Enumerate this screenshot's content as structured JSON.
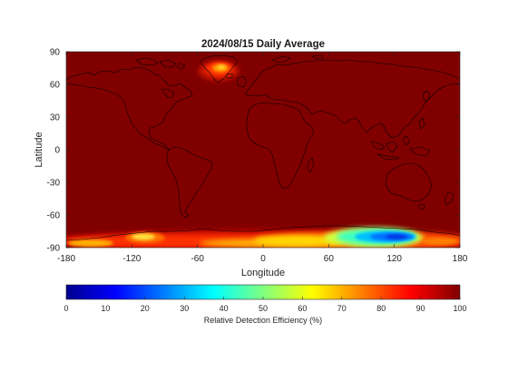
{
  "map": {
    "title": "2024/08/15 Daily Average",
    "xlabel": "Longitude",
    "ylabel": "Latitude",
    "xlim": [
      -180,
      180
    ],
    "ylim": [
      -90,
      90
    ],
    "xticks": [
      "-180",
      "-120",
      "-60",
      "0",
      "60",
      "120",
      "180"
    ],
    "yticks": [
      "90",
      "60",
      "30",
      "0",
      "-30",
      "-60",
      "-90"
    ],
    "colormap": "jet",
    "background_value": 100
  },
  "colorbar": {
    "label": "Relative Detection Efficiency (%)",
    "range": [
      0,
      100
    ],
    "ticks": [
      "0",
      "10",
      "20",
      "30",
      "40",
      "50",
      "60",
      "70",
      "80",
      "90",
      "100"
    ]
  }
}
